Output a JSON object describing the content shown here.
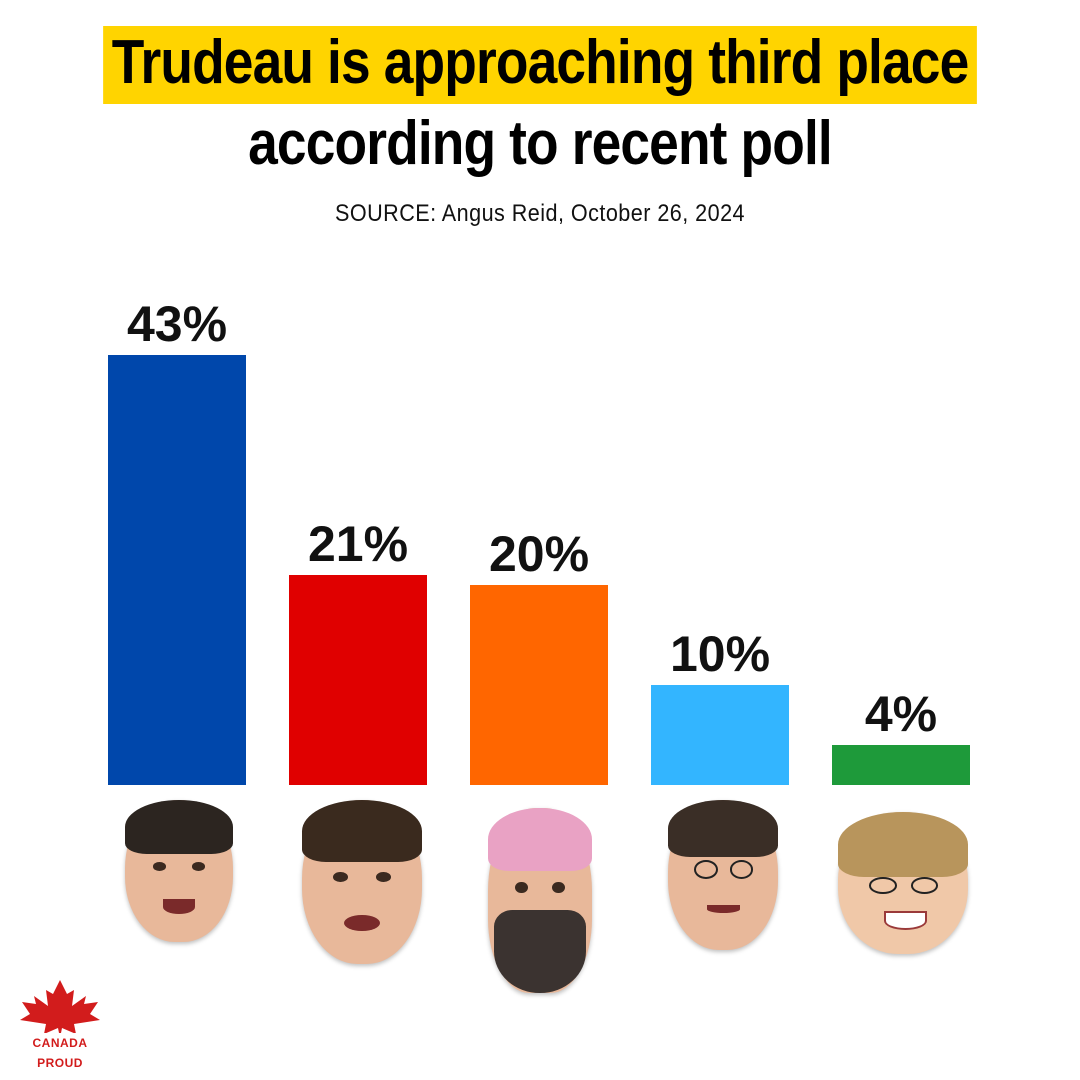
{
  "header": {
    "title_line1": "Trudeau is approaching third place",
    "title_line2": "according to recent poll",
    "subtitle": "SOURCE: Angus Reid, October 26, 2024"
  },
  "chart_data": {
    "type": "bar",
    "title": "Trudeau is approaching third place according to recent poll",
    "categories": [
      "",
      "",
      "",
      "",
      ""
    ],
    "values": [
      43,
      21,
      20,
      10,
      4
    ],
    "labels": [
      "43%",
      "21%",
      "20%",
      "10%",
      "4%"
    ],
    "colors": [
      "#0047ab",
      "#e00000",
      "#ff6600",
      "#33b5ff",
      "#1e9a3a"
    ],
    "ylim": [
      0,
      43
    ],
    "grid": false
  },
  "logo": {
    "text": "CANADA PROUD",
    "color": "#d21c1c",
    "icon": "maple-leaf-icon"
  }
}
